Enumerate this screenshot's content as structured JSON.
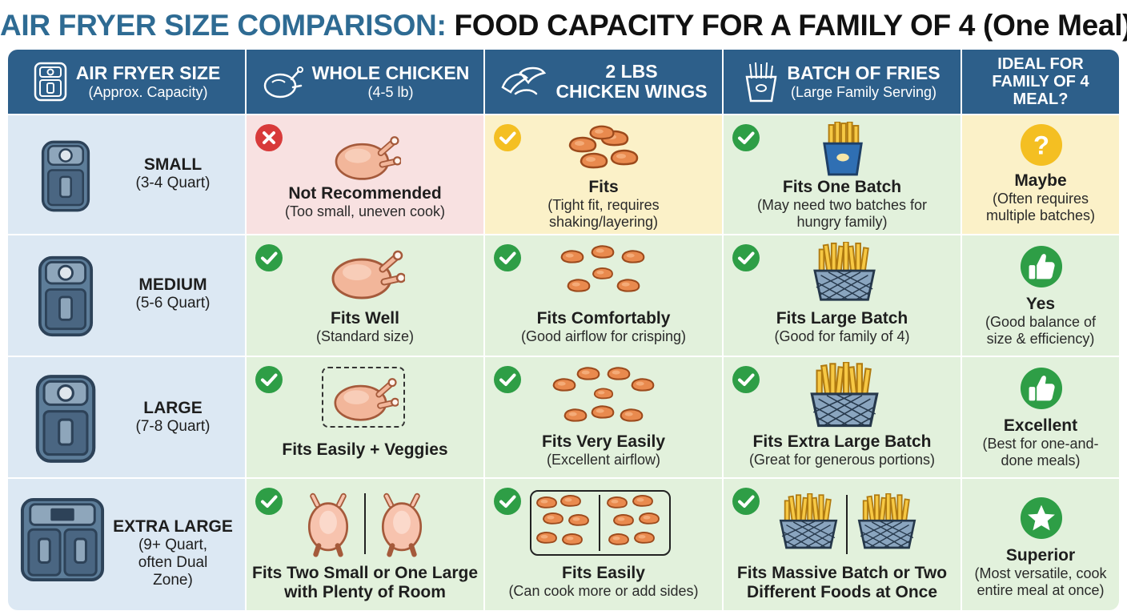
{
  "title": {
    "part1": "AIR FRYER SIZE COMPARISON:",
    "part2": "FOOD CAPACITY FOR A FAMILY OF 4 (One Meal)"
  },
  "headers": [
    {
      "main": "AIR FRYER SIZE",
      "sub": "(Approx. Capacity)",
      "icon": "air-fryer-icon"
    },
    {
      "main": "WHOLE CHICKEN",
      "sub": "(4-5 lb)",
      "icon": "whole-chicken-icon"
    },
    {
      "main": "2 LBS",
      "sub": "CHICKEN WINGS",
      "icon": "chicken-wings-icon"
    },
    {
      "main": "BATCH OF FRIES",
      "sub": "(Large Family Serving)",
      "icon": "fries-icon"
    },
    {
      "main": "IDEAL FOR FAMILY OF 4 MEAL?",
      "sub": "",
      "icon": ""
    }
  ],
  "rows": [
    {
      "size": {
        "name": "SMALL",
        "capacity": "(3-4 Quart)"
      },
      "chicken": {
        "status": "no",
        "main": "Not Recommended",
        "sub": "(Too small, uneven cook)"
      },
      "wings": {
        "status": "caution",
        "main": "Fits",
        "sub": "(Tight fit, requires shaking/layering)"
      },
      "fries": {
        "status": "yes",
        "main": "Fits One Batch",
        "sub": "(May need two batches for hungry family)"
      },
      "ideal": {
        "icon": "question-icon",
        "main": "Maybe",
        "sub": "(Often requires multiple batches)"
      }
    },
    {
      "size": {
        "name": "MEDIUM",
        "capacity": "(5-6 Quart)"
      },
      "chicken": {
        "status": "yes",
        "main": "Fits Well",
        "sub": "(Standard size)"
      },
      "wings": {
        "status": "yes",
        "main": "Fits Comfortably",
        "sub": "(Good airflow for crisping)"
      },
      "fries": {
        "status": "yes",
        "main": "Fits Large Batch",
        "sub": "(Good for family of 4)"
      },
      "ideal": {
        "icon": "thumbs-up-icon",
        "main": "Yes",
        "sub": "(Good balance of size & efficiency)"
      }
    },
    {
      "size": {
        "name": "LARGE",
        "capacity": "(7-8 Quart)"
      },
      "chicken": {
        "status": "yes",
        "main": "Fits Easily + Veggies",
        "sub": ""
      },
      "wings": {
        "status": "yes",
        "main": "Fits Very Easily",
        "sub": "(Excellent airflow)"
      },
      "fries": {
        "status": "yes",
        "main": "Fits Extra Large Batch",
        "sub": "(Great for generous portions)"
      },
      "ideal": {
        "icon": "thumbs-up-icon",
        "main": "Excellent",
        "sub": "(Best for one-and-done meals)"
      }
    },
    {
      "size": {
        "name": "EXTRA LARGE",
        "capacity": "(9+ Quart, often Dual Zone)"
      },
      "chicken": {
        "status": "yes",
        "main": "Fits Two Small or One Large with Plenty of Room",
        "sub": ""
      },
      "wings": {
        "status": "yes",
        "main": "Fits Easily",
        "sub": "(Can cook more or add sides)"
      },
      "fries": {
        "status": "yes",
        "main": "Fits Massive Batch or Two Different Foods at Once",
        "sub": ""
      },
      "ideal": {
        "icon": "star-icon",
        "main": "Superior",
        "sub": "(Most versatile, cook entire meal at once)"
      }
    }
  ],
  "colors": {
    "header": "#2d5f8a",
    "title_accent": "#2e6b93",
    "size_cell": "#dce8f3",
    "not_recommended": "#f8e1e1",
    "caution": "#fbf1c8",
    "good": "#e2f1dc",
    "check": "#2e9e46",
    "cross": "#d83a3a",
    "warn": "#f4bf22"
  }
}
